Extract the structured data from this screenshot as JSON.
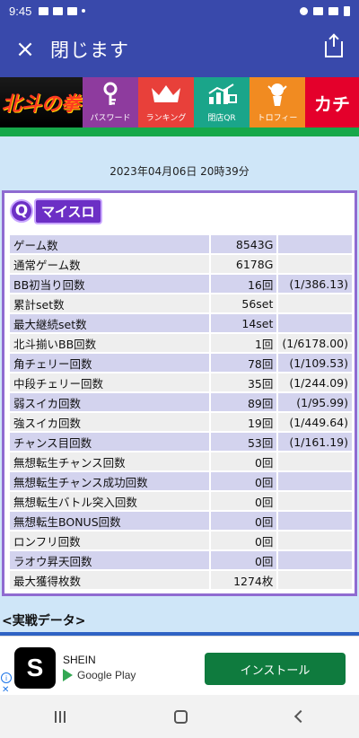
{
  "status_bar": {
    "time": "9:45"
  },
  "app_bar": {
    "title": "閉じます"
  },
  "nav": {
    "logo": "北斗の拳",
    "tiles": [
      {
        "label": "パスワード",
        "icon": "key-icon"
      },
      {
        "label": "ランキング",
        "icon": "crown-icon"
      },
      {
        "label": "閉店QR",
        "icon": "chart-qr-icon"
      },
      {
        "label": "トロフィー",
        "icon": "trophy-person-icon"
      }
    ],
    "last_tile": "カチ"
  },
  "timestamp": "2023年04月06日 20時39分",
  "brand": {
    "q": "Q",
    "text": "マイスロ"
  },
  "stats": [
    {
      "label": "ゲーム数",
      "value": "8543G",
      "ratio": ""
    },
    {
      "label": "通常ゲーム数",
      "value": "6178G",
      "ratio": ""
    },
    {
      "label": "BB初当り回数",
      "value": "16回",
      "ratio": "(1/386.13)"
    },
    {
      "label": "累計set数",
      "value": "56set",
      "ratio": ""
    },
    {
      "label": "最大継続set数",
      "value": "14set",
      "ratio": ""
    },
    {
      "label": "北斗揃いBB回数",
      "value": "1回",
      "ratio": "(1/6178.00)"
    },
    {
      "label": "角チェリー回数",
      "value": "78回",
      "ratio": "(1/109.53)"
    },
    {
      "label": "中段チェリー回数",
      "value": "35回",
      "ratio": "(1/244.09)"
    },
    {
      "label": "弱スイカ回数",
      "value": "89回",
      "ratio": "(1/95.99)"
    },
    {
      "label": "強スイカ回数",
      "value": "19回",
      "ratio": "(1/449.64)"
    },
    {
      "label": "チャンス目回数",
      "value": "53回",
      "ratio": "(1/161.19)"
    },
    {
      "label": "無想転生チャンス回数",
      "value": "0回",
      "ratio": ""
    },
    {
      "label": "無想転生チャンス成功回数",
      "value": "0回",
      "ratio": ""
    },
    {
      "label": "無想転生バトル突入回数",
      "value": "0回",
      "ratio": ""
    },
    {
      "label": "無想転生BONUS回数",
      "value": "0回",
      "ratio": ""
    },
    {
      "label": "ロンフリ回数",
      "value": "0回",
      "ratio": ""
    },
    {
      "label": "ラオウ昇天回数",
      "value": "0回",
      "ratio": ""
    },
    {
      "label": "最大獲得枚数",
      "value": "1274枚",
      "ratio": ""
    }
  ],
  "section_title": "<実戦データ>",
  "ad": {
    "app_name": "SHEIN",
    "store": "Google Play",
    "install_label": "インストール",
    "icon_letter": "S"
  }
}
